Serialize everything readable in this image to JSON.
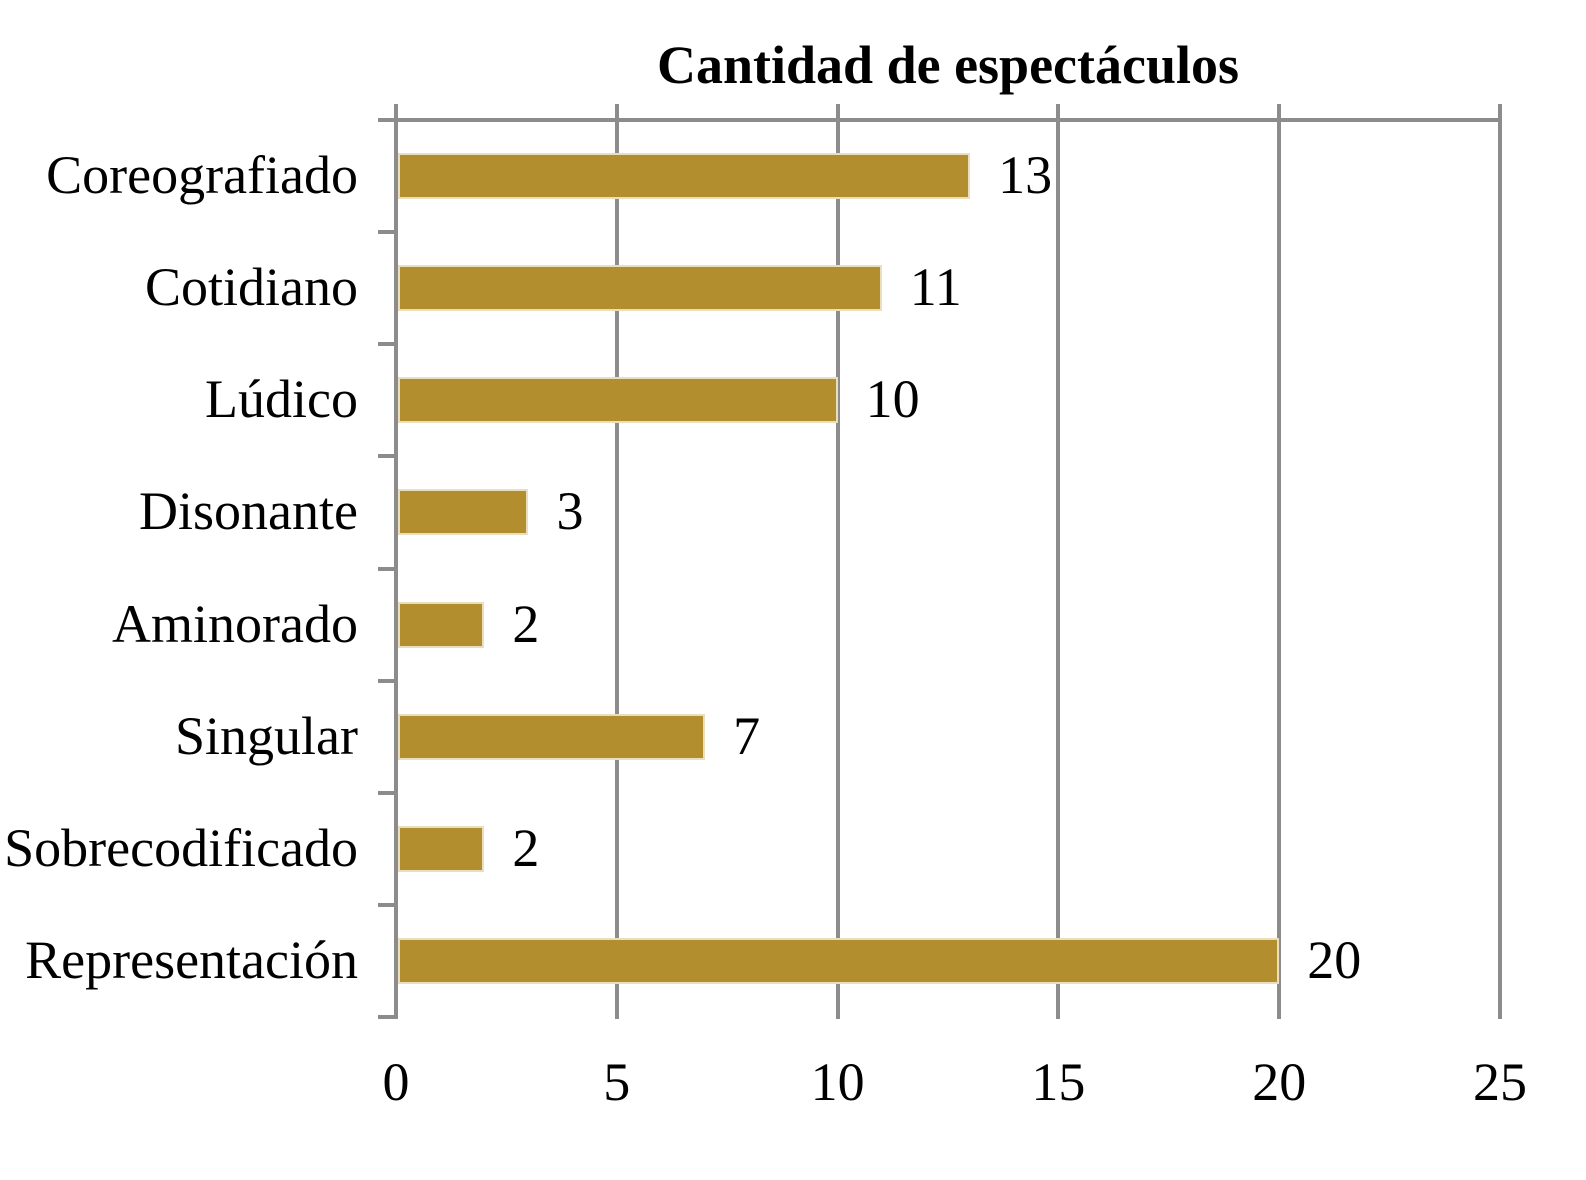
{
  "chart_data": {
    "type": "bar",
    "orientation": "horizontal",
    "title": "Cantidad de espectáculos",
    "categories": [
      "Coreografiado",
      "Cotidiano",
      "Lúdico",
      "Disonante",
      "Aminorado",
      "Singular",
      "Sobrecodificado",
      "Representación"
    ],
    "values": [
      13,
      11,
      10,
      3,
      2,
      7,
      2,
      20
    ],
    "data_labels": [
      13,
      11,
      10,
      3,
      2,
      7,
      2,
      20
    ],
    "xlabel": "",
    "ylabel": "",
    "xlim": [
      0,
      25
    ],
    "xticks": [
      0,
      5,
      10,
      15,
      20,
      25
    ],
    "grid": true,
    "legend": false,
    "colors": {
      "bar": "#B28E2F",
      "bar_edge": "#E9DFBE",
      "axis": "#8C8C8C",
      "text": "#000000",
      "background": "#FFFFFF"
    }
  }
}
